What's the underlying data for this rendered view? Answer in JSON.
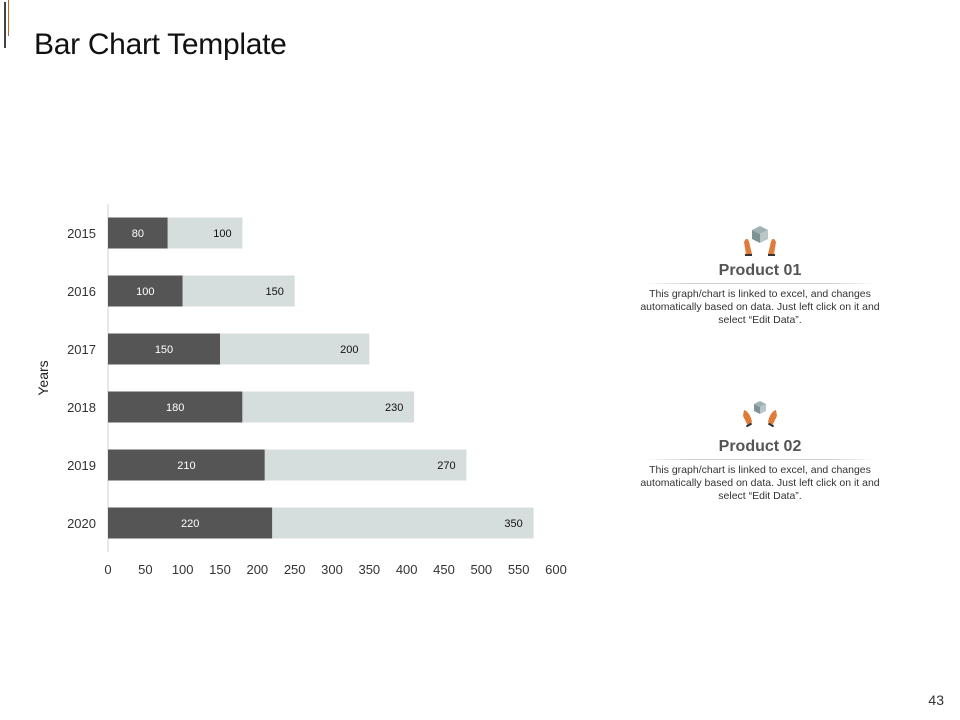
{
  "slide": {
    "title": "Bar Chart Template",
    "page_number": "43"
  },
  "chart_data": {
    "type": "bar",
    "orientation": "horizontal",
    "stacked": true,
    "ylabel": "Years",
    "categories": [
      "2015",
      "2016",
      "2017",
      "2018",
      "2019",
      "2020"
    ],
    "series": [
      {
        "name": "Product 01",
        "color": "#555555",
        "values": [
          80,
          100,
          150,
          180,
          210,
          220
        ]
      },
      {
        "name": "Product 02",
        "color": "#d5dedc",
        "values": [
          100,
          150,
          200,
          230,
          270,
          350
        ]
      }
    ],
    "xlim": [
      0,
      600
    ],
    "xticks": [
      "0",
      "50",
      "100",
      "150",
      "200",
      "250",
      "300",
      "350",
      "400",
      "450",
      "500",
      "550",
      "600"
    ],
    "grid": false,
    "data_labels": true
  },
  "products": [
    {
      "name": "Product 01",
      "description": "This graph/chart is linked to excel, and changes automatically based on data. Just left click on it and select “Edit Data”.",
      "icon": "box-on-hands-icon",
      "accent_color": "#e07b39"
    },
    {
      "name": "Product 02",
      "description": "This graph/chart is linked to excel, and changes automatically based on data. Just left click on it and select “Edit Data”.",
      "icon": "box-on-hands-icon",
      "accent_color": "#e07b39"
    }
  ]
}
